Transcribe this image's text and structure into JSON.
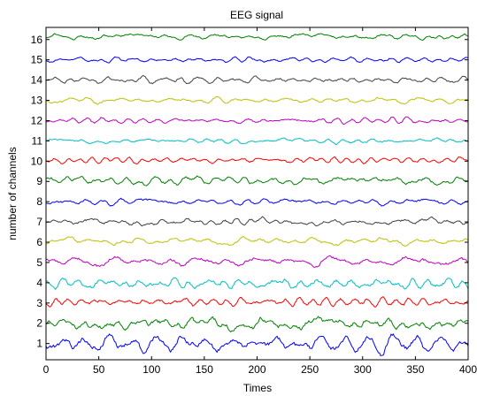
{
  "chart_data": {
    "type": "line",
    "title": "EEG signal",
    "xlabel": "Times",
    "ylabel": "number of channels",
    "xlim": [
      0,
      400
    ],
    "ylim": [
      0.2,
      16.6
    ],
    "x_ticks": [
      0,
      50,
      100,
      150,
      200,
      250,
      300,
      350,
      400
    ],
    "y_ticks": [
      1,
      2,
      3,
      4,
      5,
      6,
      7,
      8,
      9,
      10,
      11,
      12,
      13,
      14,
      15,
      16
    ],
    "grid": false,
    "legend": "none",
    "series": [
      {
        "channel": 1,
        "color": "#0000ff",
        "baseline": 1.0,
        "amplitude": 0.38
      },
      {
        "channel": 2,
        "color": "#008000",
        "baseline": 1.98,
        "amplitude": 0.32
      },
      {
        "channel": 3,
        "color": "#ff0000",
        "baseline": 3.05,
        "amplitude": 0.22
      },
      {
        "channel": 4,
        "color": "#00bfbf",
        "baseline": 3.95,
        "amplitude": 0.26
      },
      {
        "channel": 5,
        "color": "#bf00bf",
        "baseline": 5.05,
        "amplitude": 0.24
      },
      {
        "channel": 6,
        "color": "#bfbf00",
        "baseline": 6.05,
        "amplitude": 0.18
      },
      {
        "channel": 7,
        "color": "#404040",
        "baseline": 7.0,
        "amplitude": 0.18
      },
      {
        "channel": 8,
        "color": "#0000ff",
        "baseline": 8.0,
        "amplitude": 0.16
      },
      {
        "channel": 9,
        "color": "#008000",
        "baseline": 9.05,
        "amplitude": 0.22
      },
      {
        "channel": 10,
        "color": "#ff0000",
        "baseline": 10.05,
        "amplitude": 0.14
      },
      {
        "channel": 11,
        "color": "#00bfbf",
        "baseline": 11.0,
        "amplitude": 0.13
      },
      {
        "channel": 12,
        "color": "#bf00bf",
        "baseline": 12.0,
        "amplitude": 0.15
      },
      {
        "channel": 13,
        "color": "#bfbf00",
        "baseline": 13.0,
        "amplitude": 0.15
      },
      {
        "channel": 14,
        "color": "#404040",
        "baseline": 14.0,
        "amplitude": 0.16
      },
      {
        "channel": 15,
        "color": "#0000ff",
        "baseline": 15.0,
        "amplitude": 0.13
      },
      {
        "channel": 16,
        "color": "#008000",
        "baseline": 16.15,
        "amplitude": 0.15
      }
    ]
  }
}
